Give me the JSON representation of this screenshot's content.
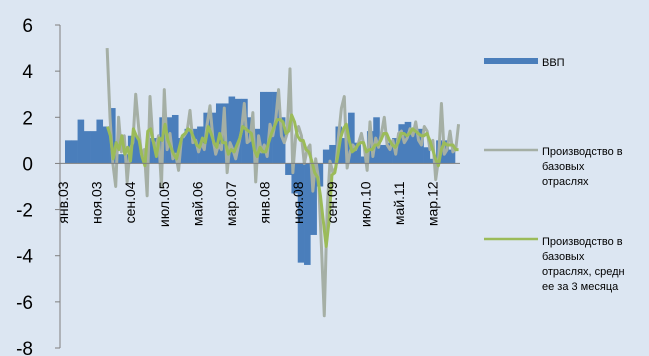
{
  "chart_data": {
    "type": "bar",
    "y_ticks": [
      6,
      4,
      2,
      0,
      -2,
      -4,
      -6,
      -8
    ],
    "ylim": [
      -8,
      6
    ],
    "x_tick_labels": [
      "янв.03",
      "ноя.03",
      "сен.04",
      "июл.05",
      "май.06",
      "мар.07",
      "янв.08",
      "ноя.08",
      "сен.09",
      "июл.10",
      "май.11",
      "мар.12"
    ],
    "grid": false,
    "legend_position": "right",
    "colors": {
      "background": "#dce6f2",
      "bars": "#4a7ebb",
      "series1": "#a5afa5",
      "series2": "#9bbb59",
      "axis": "#7f7f7f"
    },
    "series": [
      {
        "name": "ВВП",
        "kind": "bar",
        "values": [
          1.0,
          1.0,
          1.9,
          1.4,
          1.4,
          1.9,
          1.6,
          2.4,
          0.4,
          0.4,
          1.2,
          1.2,
          0.4,
          1.1,
          1.1,
          2.0,
          2.0,
          2.1,
          1.1,
          1.5,
          1.5,
          1.6,
          2.2,
          2.2,
          2.6,
          2.6,
          2.9,
          2.8,
          2.8,
          2.0,
          1.5,
          3.1,
          3.1,
          3.1,
          2.0,
          -0.5,
          -1.3,
          -4.3,
          -4.4,
          -3.1,
          -1.0,
          0.6,
          0.8,
          1.6,
          1.1,
          2.2,
          0.9,
          0.3,
          1.4,
          2.0,
          0.8,
          0.9,
          1.1,
          1.7,
          1.8,
          1.5,
          1.5,
          0.7,
          0.2,
          1.0,
          1.0,
          0.6
        ]
      },
      {
        "name": "Производство в базовых отраслях",
        "kind": "line",
        "values": [
          null,
          null,
          null,
          null,
          null,
          null,
          null,
          null,
          null,
          null,
          null,
          null,
          null,
          null,
          null,
          null,
          5.0,
          2.0,
          0.0,
          -1.0,
          2.0,
          0.5,
          1.2,
          -0.8,
          0.6,
          0.9,
          3.0,
          1.6,
          0.4,
          0.6,
          -1.4,
          2.9,
          1.0,
          0.7,
          1.2,
          -1.0,
          3.2,
          0.6,
          1.3,
          0.2,
          0.4,
          -0.3,
          1.1,
          1.2,
          1.4,
          2.3,
          0.9,
          1.0,
          0.5,
          0.9,
          0.6,
          1.7,
          2.5,
          1.1,
          0.4,
          0.8,
          0.6,
          2.4,
          -0.4,
          0.9,
          0.6,
          0.2,
          0.8,
          1.4,
          2.6,
          0.9,
          1.0,
          2.2,
          -0.8,
          1.2,
          0.5,
          0.8,
          0.3,
          1.7,
          1.2,
          1.9,
          3.2,
          1.2,
          0.9,
          1.3,
          4.1,
          -0.4,
          1.2,
          1.6,
          1.2,
          0.0,
          0.6,
          0.8,
          -1.2,
          0.2,
          -0.7,
          -3.6,
          -6.6,
          -2.0,
          0.1,
          -0.4,
          -0.2,
          1.2,
          2.4,
          2.9,
          -0.2,
          0.5,
          0.8,
          0.6,
          0.9,
          1.3,
          0.7,
          -0.3,
          1.8,
          0.3,
          1.1,
          0.7,
          1.3,
          2.0,
          0.8,
          0.6,
          1.0,
          0.4,
          1.3,
          1.4,
          0.9,
          1.1,
          1.5,
          1.2,
          1.8,
          1.0,
          0.8,
          1.6,
          1.4,
          0.6,
          1.0,
          -0.7,
          0.2,
          2.6,
          0.4,
          0.6,
          1.4,
          0.5,
          0.6,
          1.7
        ]
      },
      {
        "name": "Производство в базовых отраслях, среднее за 3 месяца",
        "kind": "line",
        "values": [
          null,
          null,
          null,
          null,
          null,
          null,
          null,
          null,
          null,
          null,
          null,
          null,
          null,
          null,
          null,
          null,
          1.6,
          1.2,
          0.2,
          0.9,
          0.6,
          1.2,
          0.4,
          0.7,
          0.1,
          1.5,
          1.2,
          1.0,
          0.3,
          -0.1,
          1.4,
          1.5,
          0.9,
          0.3,
          1.1,
          1.0,
          1.7,
          1.0,
          0.7,
          0.4,
          0.2,
          0.7,
          1.2,
          1.3,
          1.5,
          1.4,
          1.1,
          0.8,
          0.7,
          1.1,
          0.9,
          1.6,
          1.3,
          0.9,
          0.7,
          1.3,
          0.9,
          0.9,
          0.4,
          0.6,
          0.5,
          0.8,
          1.1,
          1.6,
          1.5,
          1.4,
          1.3,
          0.6,
          0.3,
          0.7,
          0.5,
          0.5,
          0.9,
          1.3,
          1.6,
          1.9,
          1.9,
          1.8,
          1.3,
          1.4,
          2.1,
          1.8,
          1.2,
          1.0,
          1.0,
          0.6,
          0.5,
          0.1,
          -0.4,
          -0.6,
          -1.4,
          -2.5,
          -3.6,
          -2.5,
          -0.5,
          -0.4,
          0.3,
          1.1,
          1.5,
          1.7,
          1.0,
          0.5,
          0.6,
          0.8,
          0.9,
          0.9,
          0.5,
          0.6,
          0.6,
          0.8,
          0.8,
          1.0,
          1.3,
          1.3,
          1.0,
          0.8,
          0.7,
          0.9,
          1.3,
          1.3,
          1.2,
          1.3,
          1.5,
          1.4,
          1.3,
          1.2,
          1.2,
          1.3,
          1.0,
          0.6,
          0.2,
          -0.1,
          0.6,
          0.9,
          0.8,
          0.8,
          0.8,
          0.6,
          0.6
        ]
      }
    ]
  }
}
